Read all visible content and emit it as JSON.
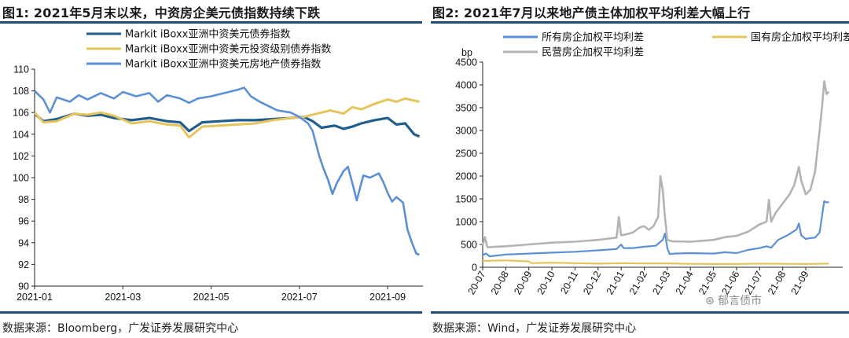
{
  "colors": {
    "navy": "#1f5d8e",
    "gold": "#e6c45c",
    "lightblue": "#5b8fd6",
    "gray": "#b3b3b3",
    "rule": "#1f4e79"
  },
  "chart_data": [
    {
      "type": "line",
      "title": "图1: 2021年5月末以来，中资房企美元债指数持续下跌",
      "source": "数据来源：Bloomberg，广发证券发展研究中心",
      "xlabel": "",
      "ylabel": "",
      "ylim": [
        90,
        110
      ],
      "yticks": [
        90,
        92,
        94,
        96,
        98,
        100,
        102,
        104,
        106,
        108,
        110
      ],
      "x_range": [
        0,
        8.8
      ],
      "x_ticks": [
        {
          "value": 0,
          "label": "2021-01"
        },
        {
          "value": 2,
          "label": "2021-03"
        },
        {
          "value": 4,
          "label": "2021-05"
        },
        {
          "value": 6,
          "label": "2021-07"
        },
        {
          "value": 8,
          "label": "2021-09"
        }
      ],
      "grid": false,
      "legend_position": "top",
      "series": [
        {
          "name": "Markit iBoxx亚洲中资美元债券指数",
          "color": "#1f5d8e",
          "width": 3.2,
          "points": [
            [
              0,
              105.9
            ],
            [
              0.2,
              105.2
            ],
            [
              0.5,
              105.4
            ],
            [
              0.9,
              105.9
            ],
            [
              1.2,
              105.7
            ],
            [
              1.5,
              105.8
            ],
            [
              1.8,
              105.5
            ],
            [
              2.2,
              105.3
            ],
            [
              2.6,
              105.5
            ],
            [
              3.0,
              105.2
            ],
            [
              3.3,
              105.1
            ],
            [
              3.5,
              104.3
            ],
            [
              3.8,
              105.1
            ],
            [
              4.2,
              105.2
            ],
            [
              4.6,
              105.3
            ],
            [
              5.0,
              105.3
            ],
            [
              5.4,
              105.4
            ],
            [
              5.8,
              105.5
            ],
            [
              6.1,
              105.6
            ],
            [
              6.3,
              105.2
            ],
            [
              6.5,
              104.6
            ],
            [
              6.8,
              104.8
            ],
            [
              7.0,
              104.5
            ],
            [
              7.2,
              104.7
            ],
            [
              7.4,
              105.0
            ],
            [
              7.7,
              105.3
            ],
            [
              8.0,
              105.5
            ],
            [
              8.2,
              104.9
            ],
            [
              8.4,
              105.0
            ],
            [
              8.6,
              104.0
            ],
            [
              8.72,
              103.8
            ]
          ]
        },
        {
          "name": "Markit iBoxx亚洲中资美元投资级别债券指数",
          "color": "#e6c45c",
          "width": 3.0,
          "points": [
            [
              0,
              106.0
            ],
            [
              0.2,
              105.1
            ],
            [
              0.5,
              105.2
            ],
            [
              0.9,
              105.9
            ],
            [
              1.2,
              105.8
            ],
            [
              1.5,
              106.0
            ],
            [
              1.8,
              105.7
            ],
            [
              2.2,
              105.0
            ],
            [
              2.6,
              105.2
            ],
            [
              3.0,
              104.9
            ],
            [
              3.3,
              104.8
            ],
            [
              3.5,
              103.7
            ],
            [
              3.8,
              104.7
            ],
            [
              4.2,
              104.8
            ],
            [
              4.6,
              104.9
            ],
            [
              5.0,
              105.0
            ],
            [
              5.4,
              105.3
            ],
            [
              5.8,
              105.5
            ],
            [
              6.1,
              105.6
            ],
            [
              6.4,
              105.9
            ],
            [
              6.7,
              106.2
            ],
            [
              7.0,
              105.9
            ],
            [
              7.2,
              106.5
            ],
            [
              7.4,
              106.3
            ],
            [
              7.7,
              106.8
            ],
            [
              8.0,
              107.2
            ],
            [
              8.2,
              107.0
            ],
            [
              8.4,
              107.3
            ],
            [
              8.6,
              107.1
            ],
            [
              8.72,
              107.0
            ]
          ]
        },
        {
          "name": "Markit iBoxx亚洲中资美元房地产债券指数",
          "color": "#5b8fd6",
          "width": 2.6,
          "points": [
            [
              0,
              108.0
            ],
            [
              0.2,
              107.2
            ],
            [
              0.35,
              106.0
            ],
            [
              0.5,
              107.4
            ],
            [
              0.8,
              107.0
            ],
            [
              1.0,
              107.6
            ],
            [
              1.2,
              107.2
            ],
            [
              1.5,
              107.8
            ],
            [
              1.8,
              107.3
            ],
            [
              2.0,
              107.9
            ],
            [
              2.3,
              107.5
            ],
            [
              2.6,
              107.8
            ],
            [
              2.8,
              107.0
            ],
            [
              3.0,
              107.6
            ],
            [
              3.3,
              107.3
            ],
            [
              3.5,
              106.9
            ],
            [
              3.7,
              107.3
            ],
            [
              4.0,
              107.5
            ],
            [
              4.3,
              107.8
            ],
            [
              4.6,
              108.1
            ],
            [
              4.75,
              108.3
            ],
            [
              4.9,
              107.5
            ],
            [
              5.1,
              107.0
            ],
            [
              5.3,
              106.6
            ],
            [
              5.5,
              106.2
            ],
            [
              5.8,
              106.0
            ],
            [
              6.0,
              105.6
            ],
            [
              6.2,
              105.0
            ],
            [
              6.3,
              104.3
            ],
            [
              6.45,
              102.0
            ],
            [
              6.55,
              100.8
            ],
            [
              6.65,
              99.8
            ],
            [
              6.75,
              98.5
            ],
            [
              6.85,
              99.5
            ],
            [
              7.0,
              100.6
            ],
            [
              7.1,
              101.0
            ],
            [
              7.2,
              99.5
            ],
            [
              7.3,
              97.9
            ],
            [
              7.45,
              100.2
            ],
            [
              7.6,
              100.0
            ],
            [
              7.8,
              100.4
            ],
            [
              7.9,
              99.6
            ],
            [
              8.0,
              98.6
            ],
            [
              8.1,
              97.8
            ],
            [
              8.2,
              98.2
            ],
            [
              8.35,
              97.7
            ],
            [
              8.45,
              95.2
            ],
            [
              8.55,
              94.0
            ],
            [
              8.65,
              93.0
            ],
            [
              8.72,
              92.9
            ]
          ]
        }
      ]
    },
    {
      "type": "line",
      "title": "图2: 2021年7月以来地产债主体加权平均利差大幅上行",
      "source": "数据来源：Wind，广发证券发展研究中心",
      "xlabel": "",
      "ylabel": "bp",
      "ylim": [
        0,
        4500
      ],
      "yticks": [
        0,
        500,
        1000,
        1500,
        2000,
        2500,
        3000,
        3500,
        4000,
        4500
      ],
      "x_range": [
        0,
        15.6
      ],
      "x_ticks": [
        {
          "value": 0,
          "label": "20-07"
        },
        {
          "value": 1,
          "label": "20-08"
        },
        {
          "value": 2,
          "label": "20-09"
        },
        {
          "value": 3,
          "label": "20-10"
        },
        {
          "value": 4,
          "label": "20-11"
        },
        {
          "value": 5,
          "label": "20-12"
        },
        {
          "value": 6,
          "label": "21-01"
        },
        {
          "value": 7,
          "label": "21-02"
        },
        {
          "value": 8,
          "label": "21-03"
        },
        {
          "value": 9,
          "label": "21-04"
        },
        {
          "value": 10,
          "label": "21-05"
        },
        {
          "value": 11,
          "label": "21-06"
        },
        {
          "value": 12,
          "label": "21-07"
        },
        {
          "value": 13,
          "label": "21-08"
        },
        {
          "value": 14,
          "label": "21-09"
        }
      ],
      "grid": false,
      "legend_position": "top",
      "series": [
        {
          "name": "所有房企加权平均利差",
          "color": "#5b8fd6",
          "width": 2.2,
          "points": [
            [
              0,
              270
            ],
            [
              0.15,
              300
            ],
            [
              0.3,
              240
            ],
            [
              1,
              280
            ],
            [
              2,
              300
            ],
            [
              3,
              320
            ],
            [
              4,
              340
            ],
            [
              5,
              370
            ],
            [
              5.8,
              400
            ],
            [
              6.0,
              500
            ],
            [
              6.1,
              420
            ],
            [
              6.5,
              420
            ],
            [
              7,
              450
            ],
            [
              7.5,
              470
            ],
            [
              7.8,
              600
            ],
            [
              7.9,
              740
            ],
            [
              8.0,
              420
            ],
            [
              8.1,
              290
            ],
            [
              8.3,
              300
            ],
            [
              9,
              310
            ],
            [
              10,
              300
            ],
            [
              10.5,
              330
            ],
            [
              11,
              310
            ],
            [
              11.5,
              380
            ],
            [
              12,
              420
            ],
            [
              12.3,
              460
            ],
            [
              12.5,
              430
            ],
            [
              12.8,
              600
            ],
            [
              13.2,
              700
            ],
            [
              13.6,
              830
            ],
            [
              13.7,
              960
            ],
            [
              13.8,
              700
            ],
            [
              14.0,
              620
            ],
            [
              14.2,
              640
            ],
            [
              14.4,
              650
            ],
            [
              14.6,
              760
            ],
            [
              14.8,
              1450
            ],
            [
              14.9,
              1420
            ],
            [
              15.0,
              1430
            ]
          ]
        },
        {
          "name": "国有房企加权平均利差",
          "color": "#e6c45c",
          "width": 2.2,
          "points": [
            [
              0,
              140
            ],
            [
              1,
              150
            ],
            [
              2,
              130
            ],
            [
              2.1,
              90
            ],
            [
              3,
              100
            ],
            [
              4,
              90
            ],
            [
              5,
              80
            ],
            [
              6,
              90
            ],
            [
              7,
              85
            ],
            [
              8,
              85
            ],
            [
              9,
              75
            ],
            [
              10,
              70
            ],
            [
              11,
              70
            ],
            [
              12,
              80
            ],
            [
              13,
              75
            ],
            [
              14,
              70
            ],
            [
              15,
              80
            ]
          ]
        },
        {
          "name": "民营房企加权平均利差",
          "color": "#b3b3b3",
          "width": 2.6,
          "points": [
            [
              0,
              480
            ],
            [
              0.1,
              660
            ],
            [
              0.2,
              440
            ],
            [
              1,
              460
            ],
            [
              2,
              500
            ],
            [
              3,
              540
            ],
            [
              4,
              560
            ],
            [
              5,
              600
            ],
            [
              5.8,
              650
            ],
            [
              5.9,
              1100
            ],
            [
              6.0,
              700
            ],
            [
              6.2,
              720
            ],
            [
              6.5,
              760
            ],
            [
              6.8,
              870
            ],
            [
              7.0,
              900
            ],
            [
              7.2,
              820
            ],
            [
              7.4,
              900
            ],
            [
              7.6,
              1100
            ],
            [
              7.7,
              2000
            ],
            [
              7.8,
              1700
            ],
            [
              7.9,
              1100
            ],
            [
              8.0,
              600
            ],
            [
              8.2,
              570
            ],
            [
              9,
              560
            ],
            [
              10,
              600
            ],
            [
              10.5,
              660
            ],
            [
              11,
              690
            ],
            [
              11.5,
              780
            ],
            [
              12,
              940
            ],
            [
              12.3,
              1000
            ],
            [
              12.4,
              1480
            ],
            [
              12.5,
              1000
            ],
            [
              12.7,
              1200
            ],
            [
              13.0,
              1400
            ],
            [
              13.3,
              1600
            ],
            [
              13.5,
              1800
            ],
            [
              13.7,
              2200
            ],
            [
              13.8,
              1900
            ],
            [
              14.0,
              1600
            ],
            [
              14.2,
              1700
            ],
            [
              14.4,
              2100
            ],
            [
              14.6,
              3000
            ],
            [
              14.7,
              3500
            ],
            [
              14.8,
              4080
            ],
            [
              14.9,
              3800
            ],
            [
              15.0,
              3850
            ]
          ]
        }
      ]
    }
  ],
  "watermark": {
    "symbol": "⊛",
    "text": "郁言债市"
  }
}
